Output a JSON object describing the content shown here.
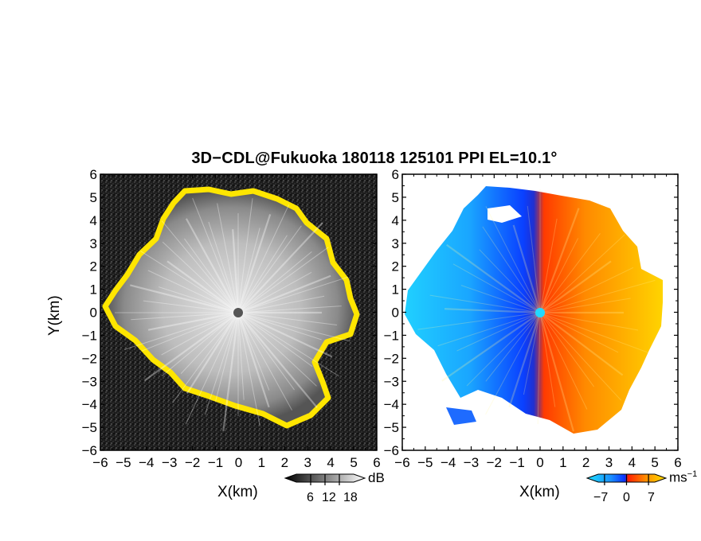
{
  "chart_data": [
    {
      "type": "heatmap",
      "panel": "reflectivity",
      "colormap": "grayscale",
      "flag_color": "#ffee00",
      "xlabel": "X(km)",
      "ylabel": "Y(km)",
      "xlim": [
        -6,
        6
      ],
      "ylim": [
        -6,
        6
      ],
      "xticks": [
        "−6",
        "−5",
        "−4",
        "−3",
        "−2",
        "−1",
        "0",
        "1",
        "2",
        "3",
        "4",
        "5",
        "6"
      ],
      "yticks": [
        "6",
        "5",
        "4",
        "3",
        "2",
        "1",
        "0",
        "−1",
        "−2",
        "−3",
        "−4",
        "−5",
        "−6"
      ],
      "colorbar": {
        "unit": "dB",
        "ticks": [
          "6",
          "12",
          "18"
        ],
        "tick_values": [
          6,
          12,
          18
        ],
        "range": [
          0,
          24
        ]
      }
    },
    {
      "type": "heatmap",
      "panel": "doppler_velocity",
      "colormap": "cyan-blue-red-yellow",
      "xlabel": "X(km)",
      "xlim": [
        -6,
        6
      ],
      "ylim": [
        -6,
        6
      ],
      "xticks": [
        "−6",
        "−5",
        "−4",
        "−3",
        "−2",
        "−1",
        "0",
        "1",
        "2",
        "3",
        "4",
        "5",
        "6"
      ],
      "yticks": [
        "6",
        "5",
        "4",
        "3",
        "2",
        "1",
        "0",
        "−1",
        "−2",
        "−3",
        "−4",
        "−5",
        "−6"
      ],
      "colorbar": {
        "unit": "ms",
        "unit_exponent": "−1",
        "ticks": [
          "−7",
          "0",
          "7"
        ],
        "tick_values": [
          -7,
          0,
          7
        ],
        "range": [
          -9,
          9
        ]
      }
    }
  ],
  "figure": {
    "title": "3D−CDL@Fukuoka 180118 125101 PPI EL=10.1°",
    "colors": {
      "background": "#000000",
      "panel_bg": "#ffffff"
    }
  }
}
